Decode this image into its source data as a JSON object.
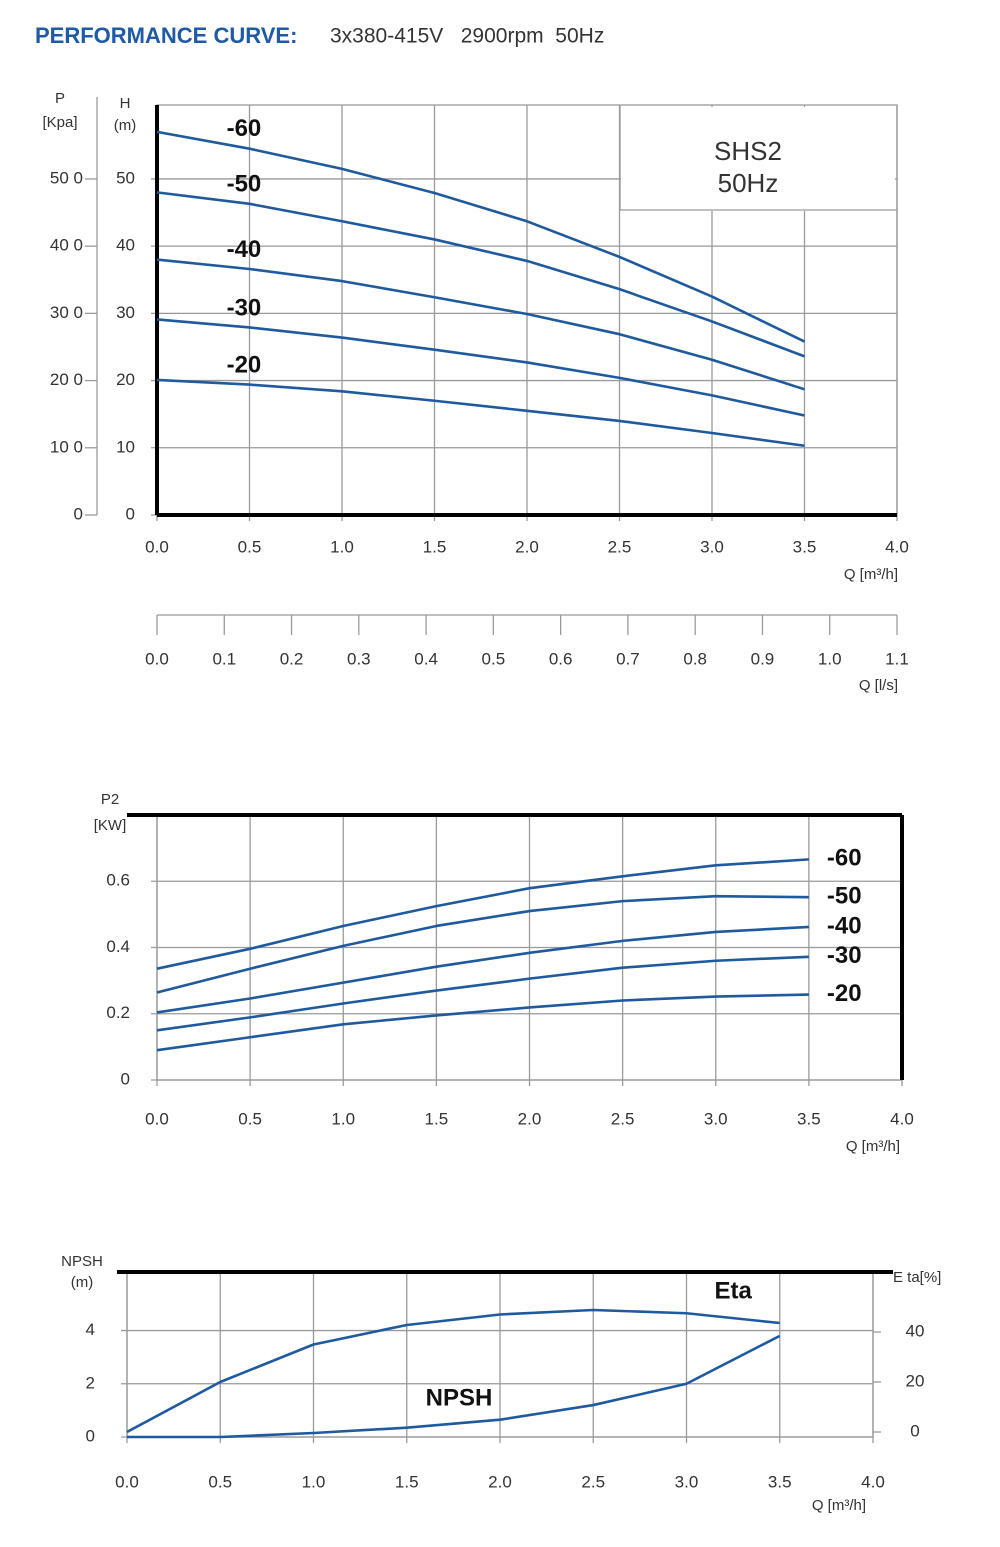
{
  "header": {
    "title": "PERFORMANCE CURVE:",
    "subtitle": "3x380-415V   2900rpm  50Hz"
  },
  "chart_data": [
    {
      "type": "line",
      "annotations": [
        "SHS2",
        "50Hz"
      ],
      "xlabel": "Q [m³/h]",
      "ylabel": [
        "H",
        "(m)"
      ],
      "y2label": [
        "P",
        "[Kpa]"
      ],
      "x2label": "Q [l/s]",
      "x": [
        0,
        0.5,
        1,
        1.5,
        2,
        2.5,
        3,
        3.5
      ],
      "xlim": [
        0,
        4
      ],
      "xticks": [
        {
          "value": 0,
          "label": "0.0"
        },
        0.5,
        {
          "value": 1,
          "label": "1.0"
        },
        1.5,
        {
          "value": 2,
          "label": "2.0"
        },
        2.5,
        {
          "value": 3,
          "label": "3.0"
        },
        3.5,
        {
          "value": 4,
          "label": "4.0"
        }
      ],
      "x2lim": [
        0,
        1.1
      ],
      "x2ticks": [
        {
          "value": 0,
          "label": "0.0"
        },
        0.1,
        0.2,
        0.3,
        0.4,
        0.5,
        0.6,
        0.7,
        0.8,
        0.9,
        {
          "value": 1,
          "label": "1.0"
        },
        1.1
      ],
      "ylim": [
        0,
        61
      ],
      "yticks": [
        0,
        10,
        20,
        30,
        40,
        50
      ],
      "y2lim": [
        0,
        610
      ],
      "y2ticks": [
        0,
        {
          "value": 100,
          "label": "10 0"
        },
        {
          "value": 200,
          "label": "20 0"
        },
        {
          "value": 300,
          "label": "30 0"
        },
        {
          "value": 400,
          "label": "40 0"
        },
        {
          "value": 500,
          "label": "50 0"
        }
      ],
      "grid": true,
      "series": [
        {
          "name": "-60",
          "color": "#1f5a9e",
          "values": [
            57,
            54.5,
            51.5,
            47.9,
            43.7,
            38.4,
            32.5,
            25.8
          ]
        },
        {
          "name": "-50",
          "color": "#1f5a9e",
          "values": [
            48,
            46.3,
            43.7,
            41,
            37.8,
            33.6,
            28.8,
            23.6
          ]
        },
        {
          "name": "-40",
          "color": "#1f5a9e",
          "values": [
            38,
            36.6,
            34.8,
            32.4,
            29.9,
            26.9,
            23.1,
            18.7
          ]
        },
        {
          "name": "-30",
          "color": "#1f5a9e",
          "values": [
            29.1,
            27.9,
            26.4,
            24.6,
            22.7,
            20.4,
            17.8,
            14.8
          ]
        },
        {
          "name": "-20",
          "color": "#1f5a9e",
          "values": [
            20.1,
            19.4,
            18.4,
            17,
            15.5,
            14,
            12.2,
            10.3
          ]
        }
      ]
    },
    {
      "type": "line",
      "xlabel": "Q [m³/h]",
      "ylabel": [
        "P2",
        "[KW]"
      ],
      "x": [
        0,
        0.5,
        1,
        1.5,
        2,
        2.5,
        3,
        3.5
      ],
      "xlim": [
        0,
        4
      ],
      "xticks": [
        {
          "value": 0,
          "label": "0.0"
        },
        0.5,
        {
          "value": 1,
          "label": "1.0"
        },
        1.5,
        {
          "value": 2,
          "label": "2.0"
        },
        2.5,
        {
          "value": 3,
          "label": "3.0"
        },
        3.5,
        {
          "value": 4,
          "label": "4.0"
        }
      ],
      "ylim": [
        0,
        0.8
      ],
      "yticks": [
        0,
        0.2,
        0.4,
        0.6
      ],
      "grid": true,
      "series": [
        {
          "name": "-60",
          "color": "#1f5a9e",
          "values": [
            0.336,
            0.396,
            0.465,
            0.525,
            0.579,
            0.615,
            0.648,
            0.666
          ]
        },
        {
          "name": "-50",
          "color": "#1f5a9e",
          "values": [
            0.264,
            0.336,
            0.405,
            0.465,
            0.51,
            0.54,
            0.555,
            0.552
          ]
        },
        {
          "name": "-40",
          "color": "#1f5a9e",
          "values": [
            0.204,
            0.246,
            0.294,
            0.342,
            0.384,
            0.42,
            0.447,
            0.462
          ]
        },
        {
          "name": "-30",
          "color": "#1f5a9e",
          "values": [
            0.15,
            0.189,
            0.231,
            0.27,
            0.306,
            0.339,
            0.36,
            0.372
          ]
        },
        {
          "name": "-20",
          "color": "#1f5a9e",
          "values": [
            0.09,
            0.129,
            0.168,
            0.195,
            0.219,
            0.24,
            0.252,
            0.258
          ]
        }
      ]
    },
    {
      "type": "line",
      "xlabel": "Q [m³/h]",
      "ylabel": [
        "NPSH",
        "(m)"
      ],
      "y2label": "E ta[%]",
      "x": [
        0,
        0.5,
        1,
        1.5,
        2,
        2.5,
        3,
        3.5
      ],
      "xlim": [
        0,
        4
      ],
      "xticks": [
        {
          "value": 0,
          "label": "0.0"
        },
        0.5,
        {
          "value": 1,
          "label": "1.0"
        },
        1.5,
        {
          "value": 2,
          "label": "2.0"
        },
        2.5,
        {
          "value": 3,
          "label": "3.0"
        },
        3.5,
        {
          "value": 4,
          "label": "4.0"
        }
      ],
      "ylim": [
        0,
        6.2
      ],
      "yticks": [
        0,
        2,
        4
      ],
      "y2lim": [
        -2,
        64
      ],
      "y2ticks": [
        0,
        20,
        40
      ],
      "grid": true,
      "series": [
        {
          "name": "NPSH",
          "color": "#1f5a9e",
          "values": [
            0,
            0,
            0.15,
            0.35,
            0.65,
            1.2,
            2,
            3.8
          ]
        },
        {
          "name": "Eta",
          "color": "#1f5a9e",
          "axis": "y2",
          "values": [
            0,
            20,
            35,
            42.8,
            47,
            48.8,
            47.5,
            43.6
          ]
        }
      ]
    }
  ]
}
